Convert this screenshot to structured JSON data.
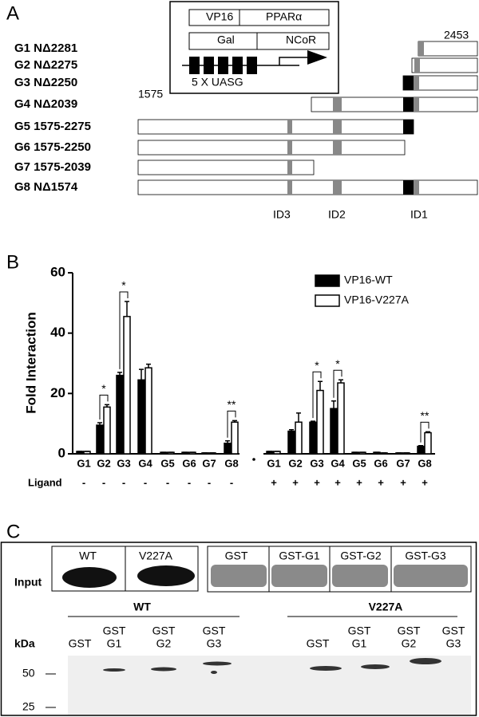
{
  "panel_a": {
    "label": "A",
    "inset": {
      "vp16": "VP16",
      "ppara": "PPARα",
      "gal": "Gal",
      "ncor": "NCoR",
      "reporter": "5 X UASG"
    },
    "constructs": [
      "G1 NΔ2281",
      "G2 NΔ2275",
      "G3 NΔ2250",
      "G4 NΔ2039",
      "G5 1575-2275",
      "G6 1575-2250",
      "G7 1575-2039",
      "G8 NΔ1574"
    ],
    "end_residue": "2453",
    "start_residue": "1575",
    "domains": [
      "ID3",
      "ID2",
      "ID1"
    ]
  },
  "chart_data": {
    "type": "bar",
    "panel_label": "B",
    "ylabel": "Fold Interaction",
    "categories": [
      "G1",
      "G2",
      "G3",
      "G4",
      "G5",
      "G6",
      "G7",
      "G8",
      "G1",
      "G2",
      "G3",
      "G4",
      "G5",
      "G6",
      "G7",
      "G8"
    ],
    "ligand_label": "Ligand",
    "ligand": [
      "-",
      "-",
      "-",
      "-",
      "-",
      "-",
      "-",
      "-",
      "+",
      "+",
      "+",
      "+",
      "+",
      "+",
      "+",
      "+"
    ],
    "series": [
      {
        "name": "VP16-WT",
        "color": "#000000",
        "values": [
          0.8,
          9.5,
          26,
          24.5,
          0.5,
          0.5,
          0.3,
          3.5,
          0.8,
          7.5,
          10.5,
          15,
          0.5,
          0.5,
          0.3,
          2.5
        ],
        "errors": [
          0,
          0.8,
          1,
          3.5,
          0,
          0,
          0,
          0.8,
          0,
          0.5,
          0.3,
          2.5,
          0,
          0,
          0,
          0.2
        ]
      },
      {
        "name": "VP16-V227A",
        "color": "#ffffff",
        "values": [
          0.8,
          15.5,
          45.5,
          28.5,
          0.5,
          0.5,
          0.3,
          10.5,
          0.8,
          10.5,
          21,
          23.5,
          0.5,
          0.3,
          0.3,
          7
        ],
        "errors": [
          0,
          0.8,
          5,
          1.2,
          0,
          0,
          0,
          0.5,
          0,
          3,
          3,
          1,
          0,
          0,
          0,
          0.3
        ]
      }
    ],
    "annotations": [
      "*",
      "*",
      "**",
      "*",
      "*",
      "**"
    ],
    "ylim": [
      0,
      60
    ],
    "yticks": [
      0,
      20,
      40,
      60
    ],
    "legend": "upper right"
  },
  "panel_c": {
    "label": "C",
    "input_label": "Input",
    "input_lanes": [
      "WT",
      "V227A"
    ],
    "gst_lanes": [
      "GST",
      "GST-G1",
      "GST-G2",
      "GST-G3"
    ],
    "groups": [
      "WT",
      "V227A"
    ],
    "lanes": [
      [
        "GST"
      ],
      [
        "GST",
        "G1"
      ],
      [
        "GST",
        "G2"
      ],
      [
        "GST",
        "G3"
      ],
      [
        "GST"
      ],
      [
        "GST",
        "G1"
      ],
      [
        "GST",
        "G2"
      ],
      [
        "GST",
        "G3"
      ]
    ],
    "kda_label": "kDa",
    "markers": [
      "50",
      "25"
    ]
  }
}
